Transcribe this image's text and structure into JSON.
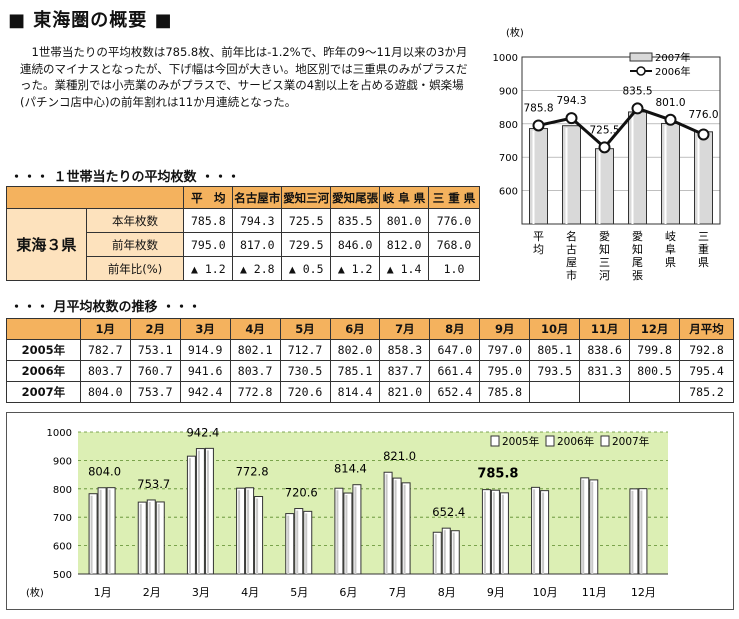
{
  "title": "■ 東海圏の概要 ■",
  "intro": "1世帯当たりの平均枚数は785.8枚、前年比は-1.2%で、昨年の9〜11月以来の3か月連続のマイナスとなったが、下げ幅は今回が大きい。地区別では三重県のみがプラスだった。業種別では小売業のみがプラスで、サービス業の4割以上を占める遊戯・娯楽場(パチンコ店中心)の前年割れは11か月連続となった。",
  "section1": "・・・ １世帯当たりの平均枚数 ・・・",
  "section2": "・・・ 月平均枚数の推移 ・・・",
  "regional": {
    "region_label": "東海３県",
    "headers": [
      "平　均",
      "名古屋市",
      "愛知三河",
      "愛知尾張",
      "岐 阜 県",
      "三 重 県"
    ],
    "rows": [
      {
        "label": "本年枚数",
        "values": [
          "785.8",
          "794.3",
          "725.5",
          "835.5",
          "801.0",
          "776.0"
        ]
      },
      {
        "label": "前年枚数",
        "values": [
          "795.0",
          "817.0",
          "729.5",
          "846.0",
          "812.0",
          "768.0"
        ]
      },
      {
        "label": "前年比(%)",
        "values": [
          "▲ 1.2",
          "▲ 2.8",
          "▲ 0.5",
          "▲ 1.2",
          "▲ 1.4",
          "1.0"
        ]
      }
    ]
  },
  "monthly_table": {
    "headers": [
      "1月",
      "2月",
      "3月",
      "4月",
      "5月",
      "6月",
      "7月",
      "8月",
      "9月",
      "10月",
      "11月",
      "12月",
      "月平均"
    ],
    "rows": [
      {
        "year": "2005年",
        "values": [
          "782.7",
          "753.1",
          "914.9",
          "802.1",
          "712.7",
          "802.0",
          "858.3",
          "647.0",
          "797.0",
          "805.1",
          "838.6",
          "799.8",
          "792.8"
        ]
      },
      {
        "year": "2006年",
        "values": [
          "803.7",
          "760.7",
          "941.6",
          "803.7",
          "730.5",
          "785.1",
          "837.7",
          "661.4",
          "795.0",
          "793.5",
          "831.3",
          "800.5",
          "795.4"
        ]
      },
      {
        "year": "2007年",
        "values": [
          "804.0",
          "753.7",
          "942.4",
          "772.8",
          "720.6",
          "814.4",
          "821.0",
          "652.4",
          "785.8",
          "",
          "",
          "",
          "785.2"
        ]
      }
    ]
  },
  "chart_data": [
    {
      "type": "bar",
      "unit": "(枚)",
      "ylim": [
        500,
        1000
      ],
      "yticks": [
        "1000",
        "900",
        "800",
        "700",
        "600"
      ],
      "categories": [
        "平均",
        "名古屋市",
        "愛知三河",
        "愛知尾張",
        "岐阜県",
        "三重県"
      ],
      "category_labels": [
        "平均",
        "名古屋市",
        "愛知三河",
        "愛知尾張",
        "岐阜県",
        "三重県"
      ],
      "series": [
        {
          "name": "2007年",
          "type": "bar",
          "values": [
            785.8,
            794.3,
            725.5,
            835.5,
            801.0,
            776.0
          ]
        },
        {
          "name": "2006年",
          "type": "line",
          "values": [
            795.0,
            817.0,
            729.5,
            846.0,
            812.0,
            768.0
          ]
        }
      ],
      "data_labels": [
        "785.8",
        "794.3",
        "725.5",
        "835.5",
        "801.0",
        "776.0"
      ],
      "legend": "top-right"
    },
    {
      "type": "bar",
      "unit": "(枚)",
      "ylim": [
        500,
        1000
      ],
      "yticks": [
        "1000",
        "900",
        "800",
        "700",
        "600",
        "500"
      ],
      "categories": [
        "1月",
        "2月",
        "3月",
        "4月",
        "5月",
        "6月",
        "7月",
        "8月",
        "9月",
        "10月",
        "11月",
        "12月"
      ],
      "series": [
        {
          "name": "2005年",
          "values": [
            782.7,
            753.1,
            914.9,
            802.1,
            712.7,
            802.0,
            858.3,
            647.0,
            797.0,
            805.1,
            838.6,
            799.8
          ]
        },
        {
          "name": "2006年",
          "values": [
            803.7,
            760.7,
            941.6,
            803.7,
            730.5,
            785.1,
            837.7,
            661.4,
            795.0,
            793.5,
            831.3,
            800.5
          ]
        },
        {
          "name": "2007年",
          "values": [
            804.0,
            753.7,
            942.4,
            772.8,
            720.6,
            814.4,
            821.0,
            652.4,
            785.8,
            null,
            null,
            null
          ]
        }
      ],
      "data_labels": [
        "804.0",
        "753.7",
        "942.4",
        "772.8",
        "720.6",
        "814.4",
        "821.0",
        "652.4",
        "785.8"
      ],
      "legend": "top-right",
      "background": "#dcefb4"
    }
  ]
}
